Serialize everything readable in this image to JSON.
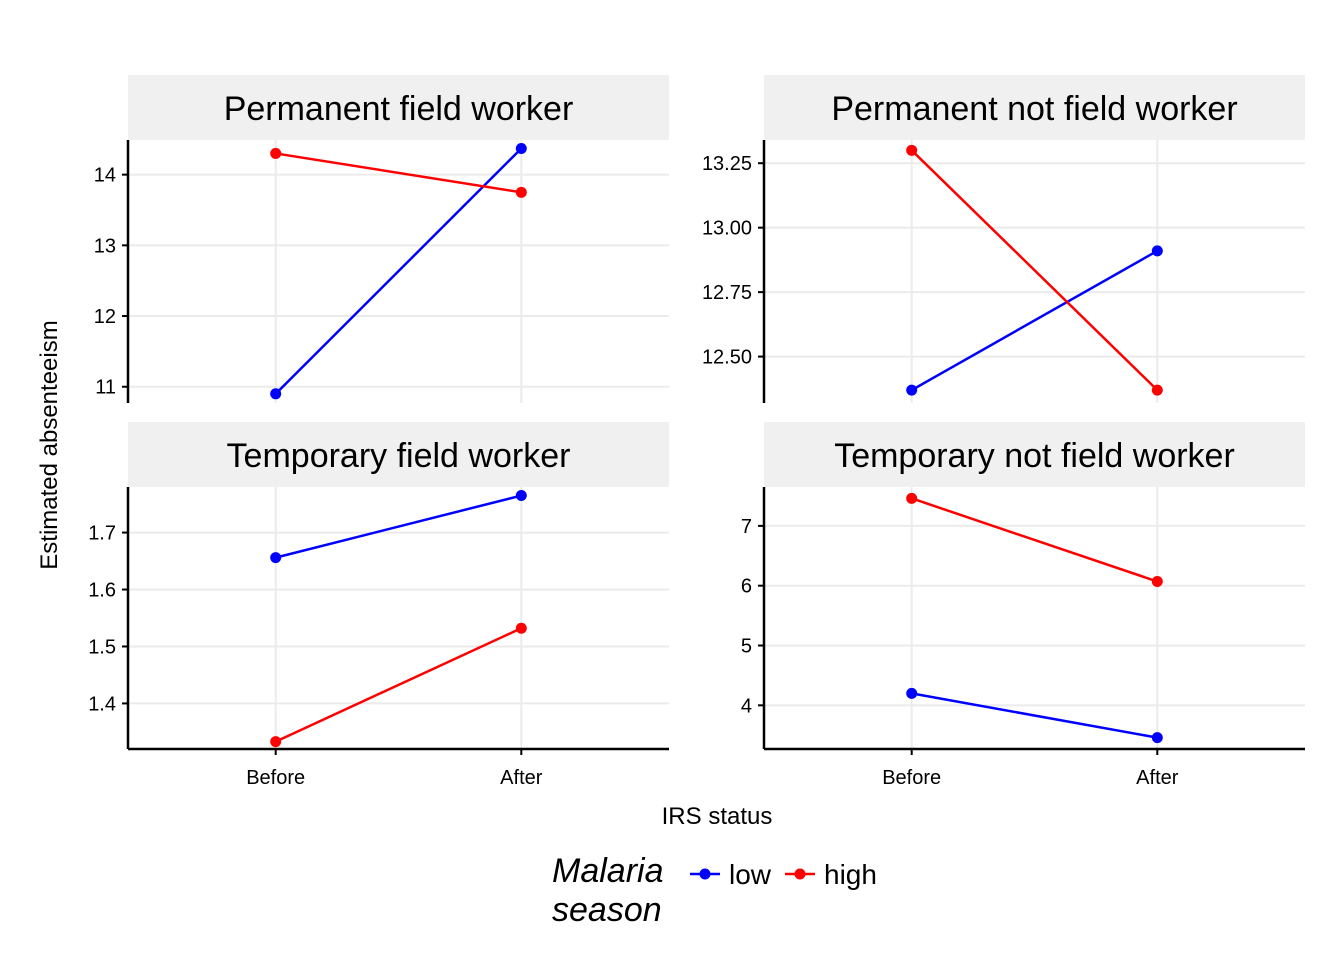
{
  "chart_data": {
    "type": "line",
    "xlabel": "IRS status",
    "ylabel": "Estimated absenteeism",
    "categories": [
      "Before",
      "After"
    ],
    "legend": {
      "title_lines": [
        "Malaria",
        "season"
      ],
      "position": "bottom",
      "entries": [
        {
          "name": "low",
          "color": "#0000FF"
        },
        {
          "name": "high",
          "color": "#FF0000"
        }
      ]
    },
    "grid": true,
    "panels": [
      {
        "title": "Permanent field worker",
        "ylim": [
          10.77,
          14.49
        ],
        "yticks": [
          11,
          12,
          13,
          14
        ],
        "ytick_labels": [
          "11",
          "12",
          "13",
          "14"
        ],
        "series": [
          {
            "name": "low",
            "color": "#0000FF",
            "values": [
              10.9,
              14.37
            ]
          },
          {
            "name": "high",
            "color": "#FF0000",
            "values": [
              14.3,
              13.75
            ]
          }
        ]
      },
      {
        "title": "Permanent not field worker",
        "ylim": [
          12.32,
          13.34
        ],
        "yticks": [
          12.5,
          12.75,
          13.0,
          13.25
        ],
        "ytick_labels": [
          "12.50",
          "12.75",
          "13.00",
          "13.25"
        ],
        "series": [
          {
            "name": "low",
            "color": "#0000FF",
            "values": [
              12.37,
              12.91
            ]
          },
          {
            "name": "high",
            "color": "#FF0000",
            "values": [
              13.3,
              12.37
            ]
          }
        ]
      },
      {
        "title": "Temporary field worker",
        "ylim": [
          1.32,
          1.78
        ],
        "yticks": [
          1.4,
          1.5,
          1.6,
          1.7
        ],
        "ytick_labels": [
          "1.4",
          "1.5",
          "1.6",
          "1.7"
        ],
        "series": [
          {
            "name": "low",
            "color": "#0000FF",
            "values": [
              1.656,
              1.765
            ]
          },
          {
            "name": "high",
            "color": "#FF0000",
            "values": [
              1.333,
              1.532
            ]
          }
        ]
      },
      {
        "title": "Temporary not field worker",
        "ylim": [
          3.27,
          7.65
        ],
        "yticks": [
          4,
          5,
          6,
          7
        ],
        "ytick_labels": [
          "4",
          "5",
          "6",
          "7"
        ],
        "series": [
          {
            "name": "low",
            "color": "#0000FF",
            "values": [
              4.2,
              3.46
            ]
          },
          {
            "name": "high",
            "color": "#FF0000",
            "values": [
              7.46,
              6.07
            ]
          }
        ]
      }
    ]
  }
}
